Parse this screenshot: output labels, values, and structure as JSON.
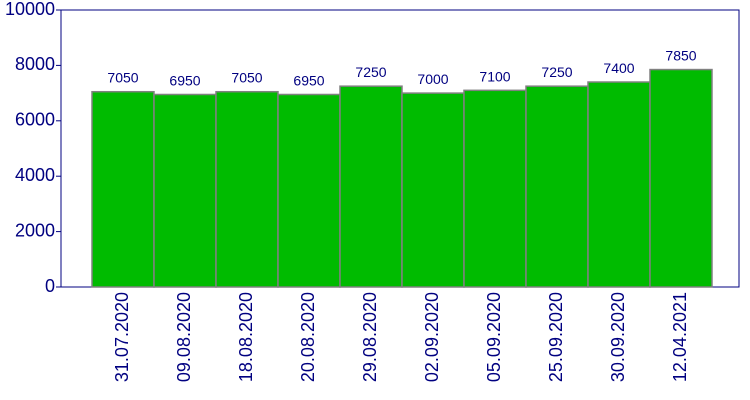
{
  "chart_data": {
    "type": "bar",
    "categories": [
      "31.07.2020",
      "09.08.2020",
      "18.08.2020",
      "20.08.2020",
      "29.08.2020",
      "02.09.2020",
      "05.09.2020",
      "25.09.2020",
      "30.09.2020",
      "12.04.2021"
    ],
    "values": [
      7050,
      6950,
      7050,
      6950,
      7250,
      7000,
      7100,
      7250,
      7400,
      7850
    ],
    "color": "#00bb00",
    "ylim": [
      0,
      10000
    ],
    "yticks": [
      0,
      2000,
      4000,
      6000,
      8000,
      10000
    ]
  }
}
